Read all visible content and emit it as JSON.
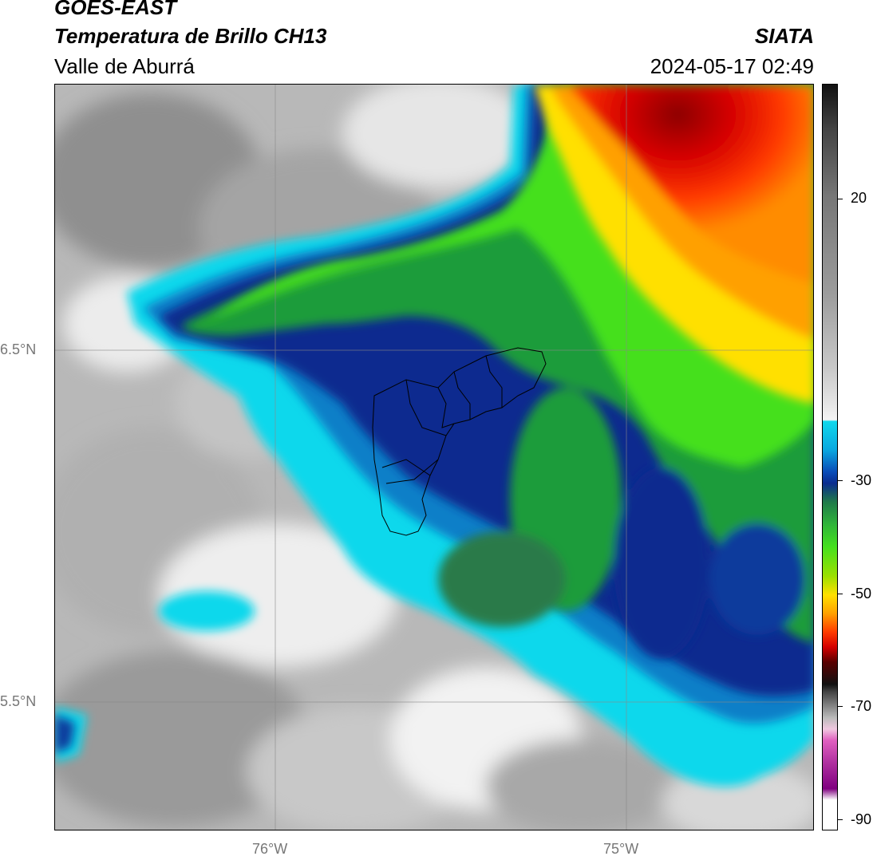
{
  "header": {
    "satellite": "GOES-EAST",
    "product": "Temperatura de Brillo CH13",
    "region": "Valle de Aburrá",
    "org": "SIATA",
    "datetime": "2024-05-17 02:49"
  },
  "axes": {
    "x_ticks": [
      {
        "label": "76°W",
        "value": -76.0
      },
      {
        "label": "75°W",
        "value": -75.0
      }
    ],
    "y_ticks": [
      {
        "label": "6.5°N",
        "value": 6.5
      },
      {
        "label": "5.5°N",
        "value": 5.5
      }
    ]
  },
  "colorbar": {
    "range": [
      -92,
      38
    ],
    "ticks": [
      {
        "label": "20",
        "value": 20
      },
      {
        "label": "-30",
        "value": -30
      },
      {
        "label": "-50",
        "value": -50
      },
      {
        "label": "-70",
        "value": -70
      },
      {
        "label": "-90",
        "value": -90
      }
    ]
  }
}
